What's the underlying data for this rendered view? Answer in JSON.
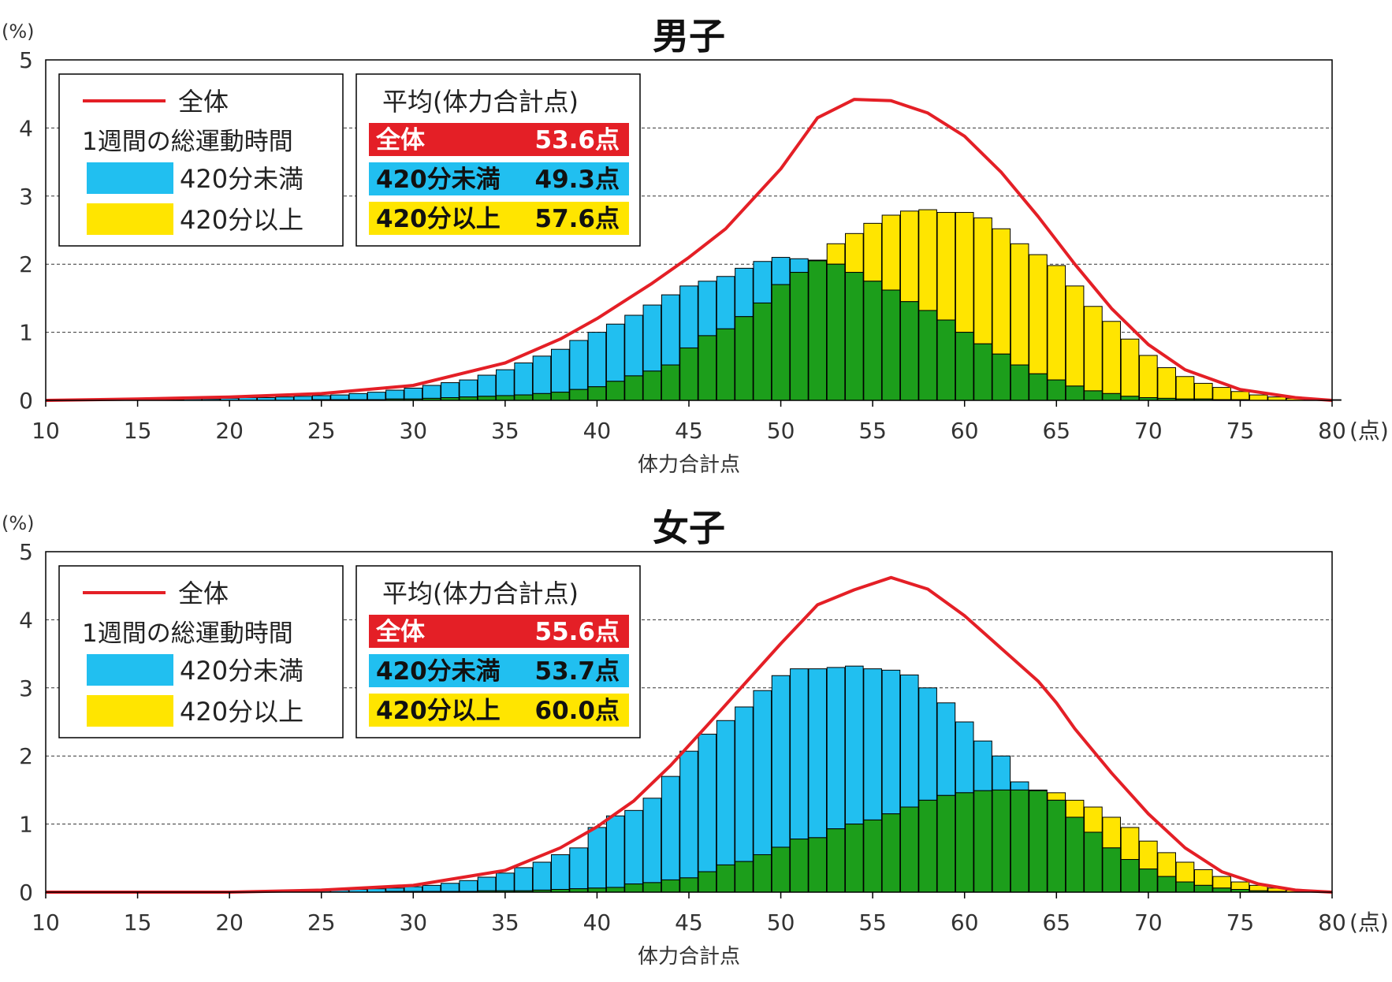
{
  "colors": {
    "total_line": "#e41f26",
    "under_420": "#21bff0",
    "over_420": "#ffe500",
    "overlap": "#1c9e1b",
    "frame": "#000000",
    "grid": "#333333"
  },
  "chart_data": [
    {
      "type": "bar",
      "title": "男子",
      "ylabel": "(%)",
      "xlabel": "体力合計点",
      "x_unit": "(点)",
      "xlim": [
        10,
        80
      ],
      "ylim": [
        0,
        5
      ],
      "x_ticks": [
        10,
        15,
        20,
        25,
        30,
        35,
        40,
        45,
        50,
        55,
        60,
        65,
        70,
        75,
        80
      ],
      "y_ticks": [
        0,
        1,
        2,
        3,
        4,
        5
      ],
      "grid": "horizontal dashed",
      "legend": {
        "total_label": "全体",
        "group_title": "1週間の総運動時間",
        "under_label": "420分未満",
        "over_label": "420分以上"
      },
      "means": {
        "title": "平均(体力合計点)",
        "rows": [
          {
            "label": "全体",
            "value": "53.6点"
          },
          {
            "label": "420分未満",
            "value": "49.3点"
          },
          {
            "label": "420分以上",
            "value": "57.6点"
          }
        ]
      },
      "x": [
        17,
        18,
        19,
        20,
        21,
        22,
        23,
        24,
        25,
        26,
        27,
        28,
        29,
        30,
        31,
        32,
        33,
        34,
        35,
        36,
        37,
        38,
        39,
        40,
        41,
        42,
        43,
        44,
        45,
        46,
        47,
        48,
        49,
        50,
        51,
        52,
        53,
        54,
        55,
        56,
        57,
        58,
        59,
        60,
        61,
        62,
        63,
        64,
        65,
        66,
        67,
        68,
        69,
        70,
        71,
        72,
        73,
        74,
        75,
        76,
        77,
        78,
        79,
        80
      ],
      "series": [
        {
          "name": "420分未満",
          "values": [
            0.01,
            0.02,
            0.02,
            0.03,
            0.04,
            0.04,
            0.05,
            0.06,
            0.07,
            0.08,
            0.1,
            0.12,
            0.15,
            0.18,
            0.22,
            0.26,
            0.3,
            0.37,
            0.45,
            0.55,
            0.65,
            0.75,
            0.88,
            1.0,
            1.12,
            1.25,
            1.4,
            1.55,
            1.68,
            1.75,
            1.82,
            1.94,
            2.04,
            2.1,
            2.08,
            2.06,
            2.0,
            1.88,
            1.75,
            1.62,
            1.45,
            1.32,
            1.18,
            1.0,
            0.83,
            0.68,
            0.52,
            0.39,
            0.3,
            0.21,
            0.14,
            0.1,
            0.06,
            0.04,
            0.03,
            0.02,
            0.02,
            0.01,
            0.01,
            0.0,
            0.0,
            0.0,
            0.0,
            0.0
          ]
        },
        {
          "name": "420分以上",
          "values": [
            0.0,
            0.0,
            0.0,
            0.0,
            0.0,
            0.0,
            0.0,
            0.0,
            0.01,
            0.01,
            0.01,
            0.01,
            0.02,
            0.02,
            0.03,
            0.04,
            0.05,
            0.06,
            0.07,
            0.08,
            0.1,
            0.12,
            0.16,
            0.2,
            0.28,
            0.36,
            0.43,
            0.52,
            0.77,
            0.95,
            1.05,
            1.23,
            1.43,
            1.7,
            1.88,
            2.05,
            2.3,
            2.45,
            2.6,
            2.72,
            2.78,
            2.8,
            2.76,
            2.76,
            2.68,
            2.52,
            2.3,
            2.14,
            1.98,
            1.68,
            1.38,
            1.16,
            0.9,
            0.66,
            0.48,
            0.35,
            0.25,
            0.19,
            0.13,
            0.08,
            0.05,
            0.03,
            0.01,
            0.01
          ]
        }
      ],
      "total_line": [
        [
          10,
          0.0
        ],
        [
          15,
          0.02
        ],
        [
          20,
          0.05
        ],
        [
          25,
          0.1
        ],
        [
          30,
          0.22
        ],
        [
          35,
          0.55
        ],
        [
          38,
          0.9
        ],
        [
          40,
          1.2
        ],
        [
          43,
          1.72
        ],
        [
          45,
          2.1
        ],
        [
          47,
          2.52
        ],
        [
          50,
          3.4
        ],
        [
          52,
          4.15
        ],
        [
          54,
          4.42
        ],
        [
          56,
          4.4
        ],
        [
          58,
          4.22
        ],
        [
          60,
          3.88
        ],
        [
          62,
          3.35
        ],
        [
          64,
          2.7
        ],
        [
          66,
          2.0
        ],
        [
          68,
          1.35
        ],
        [
          70,
          0.82
        ],
        [
          72,
          0.45
        ],
        [
          75,
          0.16
        ],
        [
          78,
          0.04
        ],
        [
          80,
          0.0
        ]
      ]
    },
    {
      "type": "bar",
      "title": "女子",
      "ylabel": "(%)",
      "xlabel": "体力合計点",
      "x_unit": "(点)",
      "xlim": [
        10,
        80
      ],
      "ylim": [
        0,
        5
      ],
      "x_ticks": [
        10,
        15,
        20,
        25,
        30,
        35,
        40,
        45,
        50,
        55,
        60,
        65,
        70,
        75,
        80
      ],
      "y_ticks": [
        0,
        1,
        2,
        3,
        4,
        5
      ],
      "grid": "horizontal dashed",
      "legend": {
        "total_label": "全体",
        "group_title": "1週間の総運動時間",
        "under_label": "420分未満",
        "over_label": "420分以上"
      },
      "means": {
        "title": "平均(体力合計点)",
        "rows": [
          {
            "label": "全体",
            "value": "55.6点"
          },
          {
            "label": "420分未満",
            "value": "53.7点"
          },
          {
            "label": "420分以上",
            "value": "60.0点"
          }
        ]
      },
      "x": [
        25,
        26,
        27,
        28,
        29,
        30,
        31,
        32,
        33,
        34,
        35,
        36,
        37,
        38,
        39,
        40,
        41,
        42,
        43,
        44,
        45,
        46,
        47,
        48,
        49,
        50,
        51,
        52,
        53,
        54,
        55,
        56,
        57,
        58,
        59,
        60,
        61,
        62,
        63,
        64,
        65,
        66,
        67,
        68,
        69,
        70,
        71,
        72,
        73,
        74,
        75,
        76,
        77,
        78,
        79,
        80
      ],
      "series": [
        {
          "name": "420分未満",
          "values": [
            0.02,
            0.03,
            0.04,
            0.05,
            0.06,
            0.08,
            0.1,
            0.13,
            0.17,
            0.22,
            0.28,
            0.36,
            0.44,
            0.55,
            0.65,
            0.95,
            1.12,
            1.2,
            1.38,
            1.7,
            2.07,
            2.32,
            2.52,
            2.72,
            2.96,
            3.18,
            3.28,
            3.28,
            3.3,
            3.32,
            3.28,
            3.26,
            3.19,
            3.0,
            2.78,
            2.5,
            2.22,
            2.0,
            1.62,
            1.5,
            1.35,
            1.1,
            0.88,
            0.65,
            0.48,
            0.34,
            0.23,
            0.15,
            0.1,
            0.06,
            0.04,
            0.02,
            0.01,
            0.0,
            0.0,
            0.0
          ]
        },
        {
          "name": "420分以上",
          "values": [
            0.0,
            0.0,
            0.0,
            0.0,
            0.01,
            0.01,
            0.01,
            0.01,
            0.01,
            0.02,
            0.02,
            0.02,
            0.03,
            0.04,
            0.05,
            0.06,
            0.07,
            0.12,
            0.14,
            0.18,
            0.21,
            0.3,
            0.4,
            0.45,
            0.55,
            0.66,
            0.78,
            0.8,
            0.93,
            1.0,
            1.06,
            1.15,
            1.25,
            1.35,
            1.42,
            1.46,
            1.49,
            1.5,
            1.5,
            1.49,
            1.46,
            1.35,
            1.25,
            1.1,
            0.95,
            0.75,
            0.58,
            0.44,
            0.33,
            0.23,
            0.15,
            0.1,
            0.06,
            0.03,
            0.01,
            0.0
          ]
        }
      ],
      "total_line": [
        [
          10,
          0.0
        ],
        [
          15,
          0.0
        ],
        [
          20,
          0.0
        ],
        [
          25,
          0.03
        ],
        [
          30,
          0.1
        ],
        [
          35,
          0.32
        ],
        [
          38,
          0.65
        ],
        [
          40,
          0.96
        ],
        [
          42,
          1.34
        ],
        [
          44,
          1.86
        ],
        [
          46,
          2.45
        ],
        [
          48,
          3.05
        ],
        [
          50,
          3.65
        ],
        [
          52,
          4.22
        ],
        [
          54,
          4.44
        ],
        [
          56,
          4.62
        ],
        [
          58,
          4.45
        ],
        [
          60,
          4.06
        ],
        [
          62,
          3.58
        ],
        [
          64,
          3.1
        ],
        [
          65,
          2.78
        ],
        [
          66,
          2.4
        ],
        [
          68,
          1.75
        ],
        [
          70,
          1.15
        ],
        [
          72,
          0.65
        ],
        [
          74,
          0.3
        ],
        [
          76,
          0.12
        ],
        [
          78,
          0.03
        ],
        [
          80,
          0.0
        ]
      ]
    }
  ]
}
